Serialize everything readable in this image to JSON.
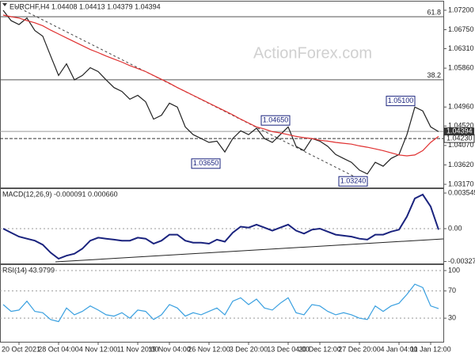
{
  "chart_data": [
    {
      "type": "line",
      "title": "EURCHF,H4 1.04408 1.04413 1.04379 1.04394",
      "watermark": "ActionForex.com",
      "ylim": [
        1.03097,
        1.07419
      ],
      "yticks": [
        {
          "value": 1.072,
          "label": "1.07200"
        },
        {
          "value": 1.0675,
          "label": "1.06750"
        },
        {
          "value": 1.0631,
          "label": "1.06310"
        },
        {
          "value": 1.0586,
          "label": "1.05860"
        },
        {
          "value": 1.0496,
          "label": "1.04960"
        },
        {
          "value": 1.0452,
          "label": "1.04520"
        },
        {
          "value": 1.0407,
          "label": "1.04070"
        },
        {
          "value": 1.0362,
          "label": "1.03620"
        },
        {
          "value": 1.0317,
          "label": "1.03170"
        }
      ],
      "levels": [
        {
          "value": 1.0705,
          "label": "61.8"
        },
        {
          "value": 1.0559,
          "label": "38.2"
        }
      ],
      "hline": {
        "value": 1.0423,
        "label": "1.04230"
      },
      "last": {
        "value": 1.04394,
        "label": "1.04394"
      },
      "annotations": [
        {
          "value": 1.0365,
          "label": "1.03650"
        },
        {
          "value": 1.0465,
          "label": "1.04650"
        },
        {
          "value": 1.0324,
          "label": "1.03240"
        },
        {
          "value": 1.051,
          "label": "1.05100"
        }
      ],
      "series": [
        {
          "color": "#222222",
          "values": [
            1.072,
            1.0696,
            1.0687,
            1.0702,
            1.0673,
            1.066,
            1.0614,
            1.0569,
            1.0596,
            1.0559,
            1.0569,
            1.0587,
            1.0578,
            1.0559,
            1.0541,
            1.0532,
            1.0514,
            1.0523,
            1.0508,
            1.0468,
            1.0477,
            1.0505,
            1.0496,
            1.045,
            1.0432,
            1.0423,
            1.0414,
            1.0417,
            1.0392,
            1.0423,
            1.0441,
            1.0432,
            1.0447,
            1.0423,
            1.0414,
            1.0432,
            1.045,
            1.0405,
            1.0395,
            1.0423,
            1.0417,
            1.0405,
            1.0386,
            1.0377,
            1.0368,
            1.035,
            1.0341,
            1.0368,
            1.0359,
            1.0377,
            1.0386,
            1.0432,
            1.0496,
            1.0487,
            1.045,
            1.0439
          ]
        },
        {
          "color": "#e03030",
          "values": [
            1.0709,
            1.0705,
            1.0702,
            1.0696,
            1.0691,
            1.0684,
            1.0674,
            1.0665,
            1.0656,
            1.0647,
            1.0638,
            1.0629,
            1.0622,
            1.0614,
            1.0607,
            1.06,
            1.0592,
            1.0585,
            1.0578,
            1.0569,
            1.056,
            1.0551,
            1.0541,
            1.0532,
            1.0523,
            1.0514,
            1.0505,
            1.0496,
            1.0487,
            1.0478,
            1.0468,
            1.0459,
            1.045,
            1.0445,
            1.0439,
            1.0436,
            1.0432,
            1.0428,
            1.0425,
            1.0423,
            1.0419,
            1.0417,
            1.0414,
            1.0412,
            1.041,
            1.0406,
            1.0403,
            1.0399,
            1.0395,
            1.039,
            1.0385,
            1.0383,
            1.0385,
            1.0395,
            1.0414,
            1.0428
          ]
        }
      ]
    },
    {
      "type": "line",
      "title": "MACD(12,26,9) -0.000091 0.000660",
      "ylim": [
        -0.00347,
        0.00402
      ],
      "yticks": [
        0.003545,
        {
          "value": 0,
          "label": "0.00"
        },
        -0.003272
      ],
      "zero_line": true,
      "series": [
        {
          "color": "#1a237e",
          "values": [
            0,
            -0.0004,
            -0.0008,
            -0.001,
            -0.0012,
            -0.0016,
            -0.0024,
            -0.003,
            -0.0027,
            -0.0025,
            -0.002,
            -0.0012,
            -0.0009,
            -0.001,
            -0.0011,
            -0.0012,
            -0.0012,
            -0.0009,
            -0.001,
            -0.0015,
            -0.0012,
            -0.0006,
            -0.0006,
            -0.0012,
            -0.0014,
            -0.0014,
            -0.0015,
            -0.0011,
            -0.0013,
            -0.0004,
            0.0002,
            0.0001,
            0.0004,
            0.0001,
            -0.0002,
            0.0001,
            0.0004,
            -0.0002,
            -0.0005,
            -0.0001,
            0,
            -0.0003,
            -0.0006,
            -0.0007,
            -0.0008,
            -0.001,
            -0.0011,
            -0.0006,
            -0.0006,
            -0.0003,
            -0.0001,
            0.0012,
            0.003,
            0.0034,
            0.0022,
            -0.0001
          ]
        }
      ]
    },
    {
      "type": "line",
      "title": "RSI(14) 43.9799",
      "ylim": [
        -4.7,
        109.3
      ],
      "yticks": [
        100,
        70,
        30
      ],
      "grid": true,
      "categories": [
        null,
        null,
        "20 Oct 2021",
        null,
        null,
        null,
        null,
        "28 Oct 04:00",
        null,
        null,
        null,
        null,
        "4 Nov 12:00",
        null,
        null,
        null,
        null,
        "11 Nov 20:00",
        null,
        null,
        null,
        "19 Nov 04:00",
        null,
        null,
        null,
        null,
        "26 Nov 12:00",
        null,
        null,
        null,
        null,
        "3 Dec 20:00",
        null,
        null,
        null,
        null,
        "13 Dec 04:00",
        null,
        null,
        null,
        "20 Dec 12:00",
        null,
        null,
        null,
        null,
        "27 Dec 20:00",
        null,
        null,
        null,
        null,
        "4 Jan 04:00",
        null,
        null,
        null,
        "11 Jan 12:00",
        null
      ],
      "series": [
        {
          "color": "#3aa0e0",
          "values": [
            50,
            40,
            42,
            55,
            40,
            38,
            28,
            25,
            45,
            35,
            40,
            48,
            42,
            35,
            33,
            38,
            30,
            42,
            40,
            28,
            35,
            50,
            45,
            33,
            38,
            35,
            40,
            45,
            35,
            55,
            60,
            50,
            58,
            45,
            42,
            52,
            60,
            38,
            35,
            50,
            48,
            40,
            35,
            38,
            35,
            30,
            28,
            48,
            40,
            48,
            52,
            65,
            80,
            75,
            48,
            44
          ]
        }
      ]
    }
  ]
}
